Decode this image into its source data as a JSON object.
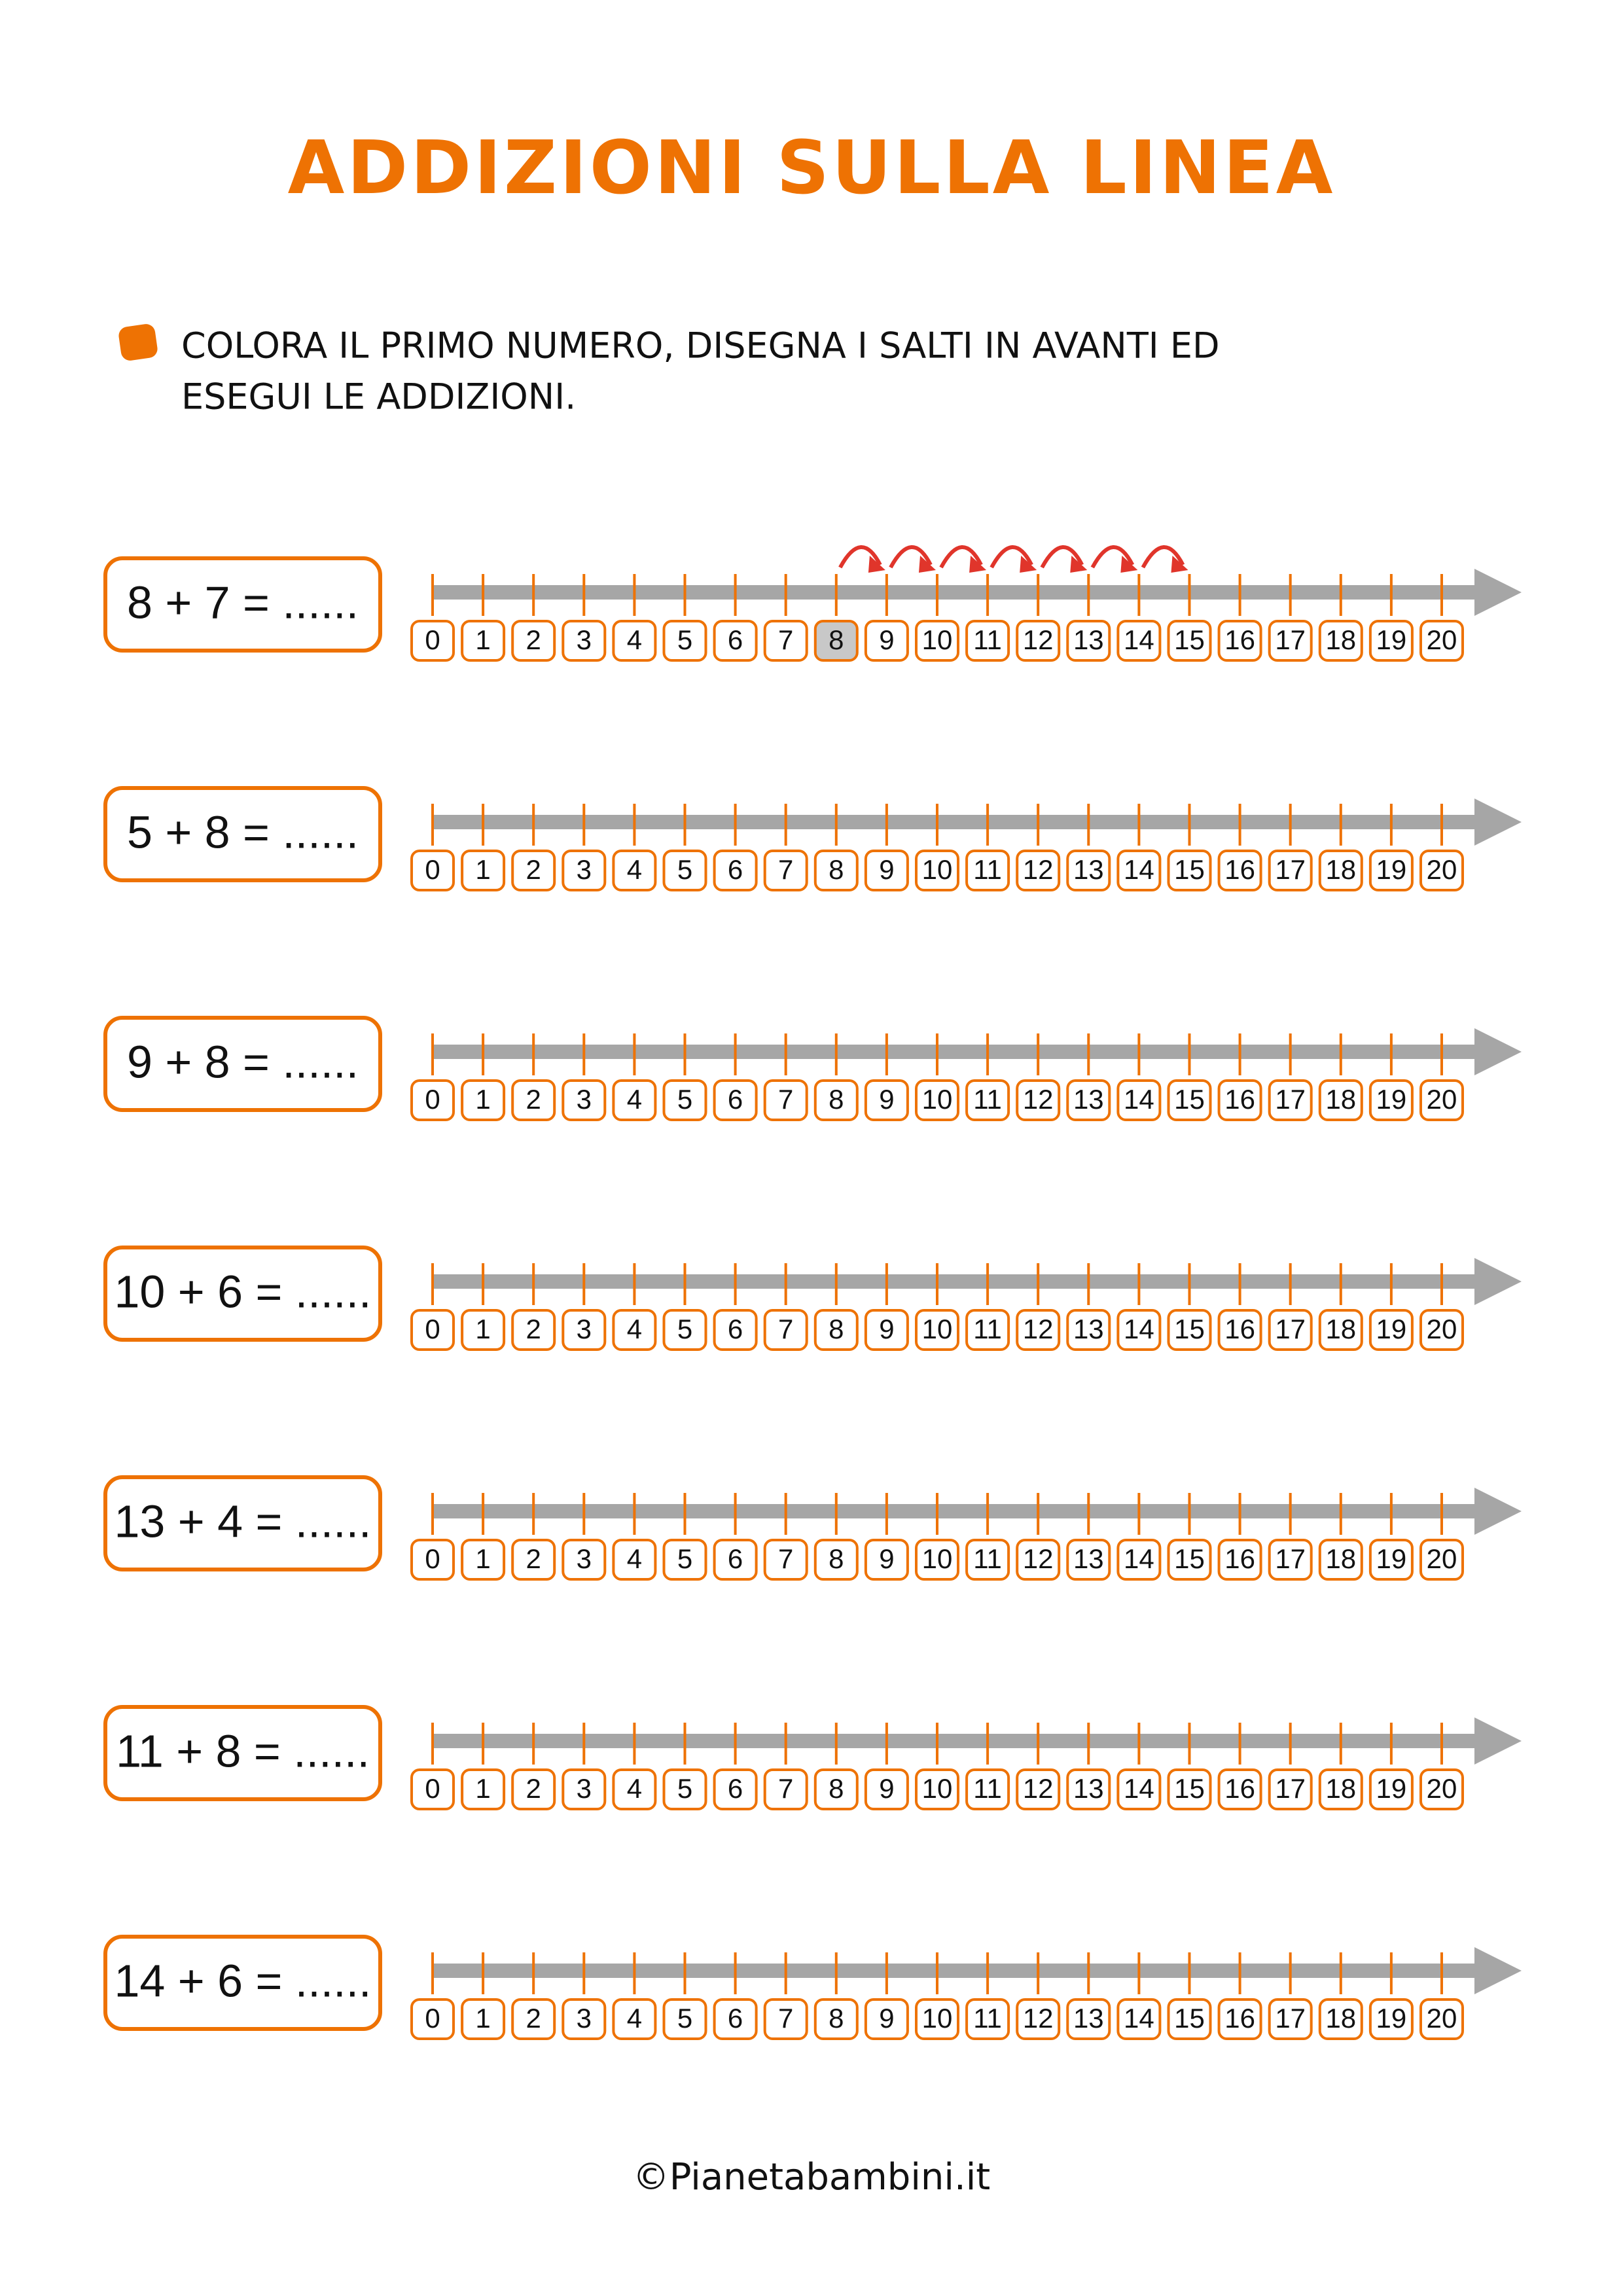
{
  "header": {
    "title": "ADDIZIONI SULLA LINEA"
  },
  "instruction": {
    "lines": [
      "COLORA IL PRIMO NUMERO, DISEGNA I SALTI IN AVANTI ED",
      "ESEGUI LE ADDIZIONI."
    ]
  },
  "exercises": [
    "8 + 7 = ......",
    "5 + 8 = ......",
    "9 + 8 = ......",
    "10 + 6 = ......",
    "13 + 4 = ......",
    "11 + 8 = ......",
    "14 + 6 = ......"
  ],
  "number_line": {
    "labels": [
      "0",
      "1",
      "2",
      "3",
      "4",
      "5",
      "6",
      "7",
      "8",
      "9",
      "10",
      "11",
      "12",
      "13",
      "14",
      "15",
      "16",
      "17",
      "18",
      "19",
      "20"
    ]
  },
  "footer": {
    "text": "©Pianetabambini.it"
  }
}
